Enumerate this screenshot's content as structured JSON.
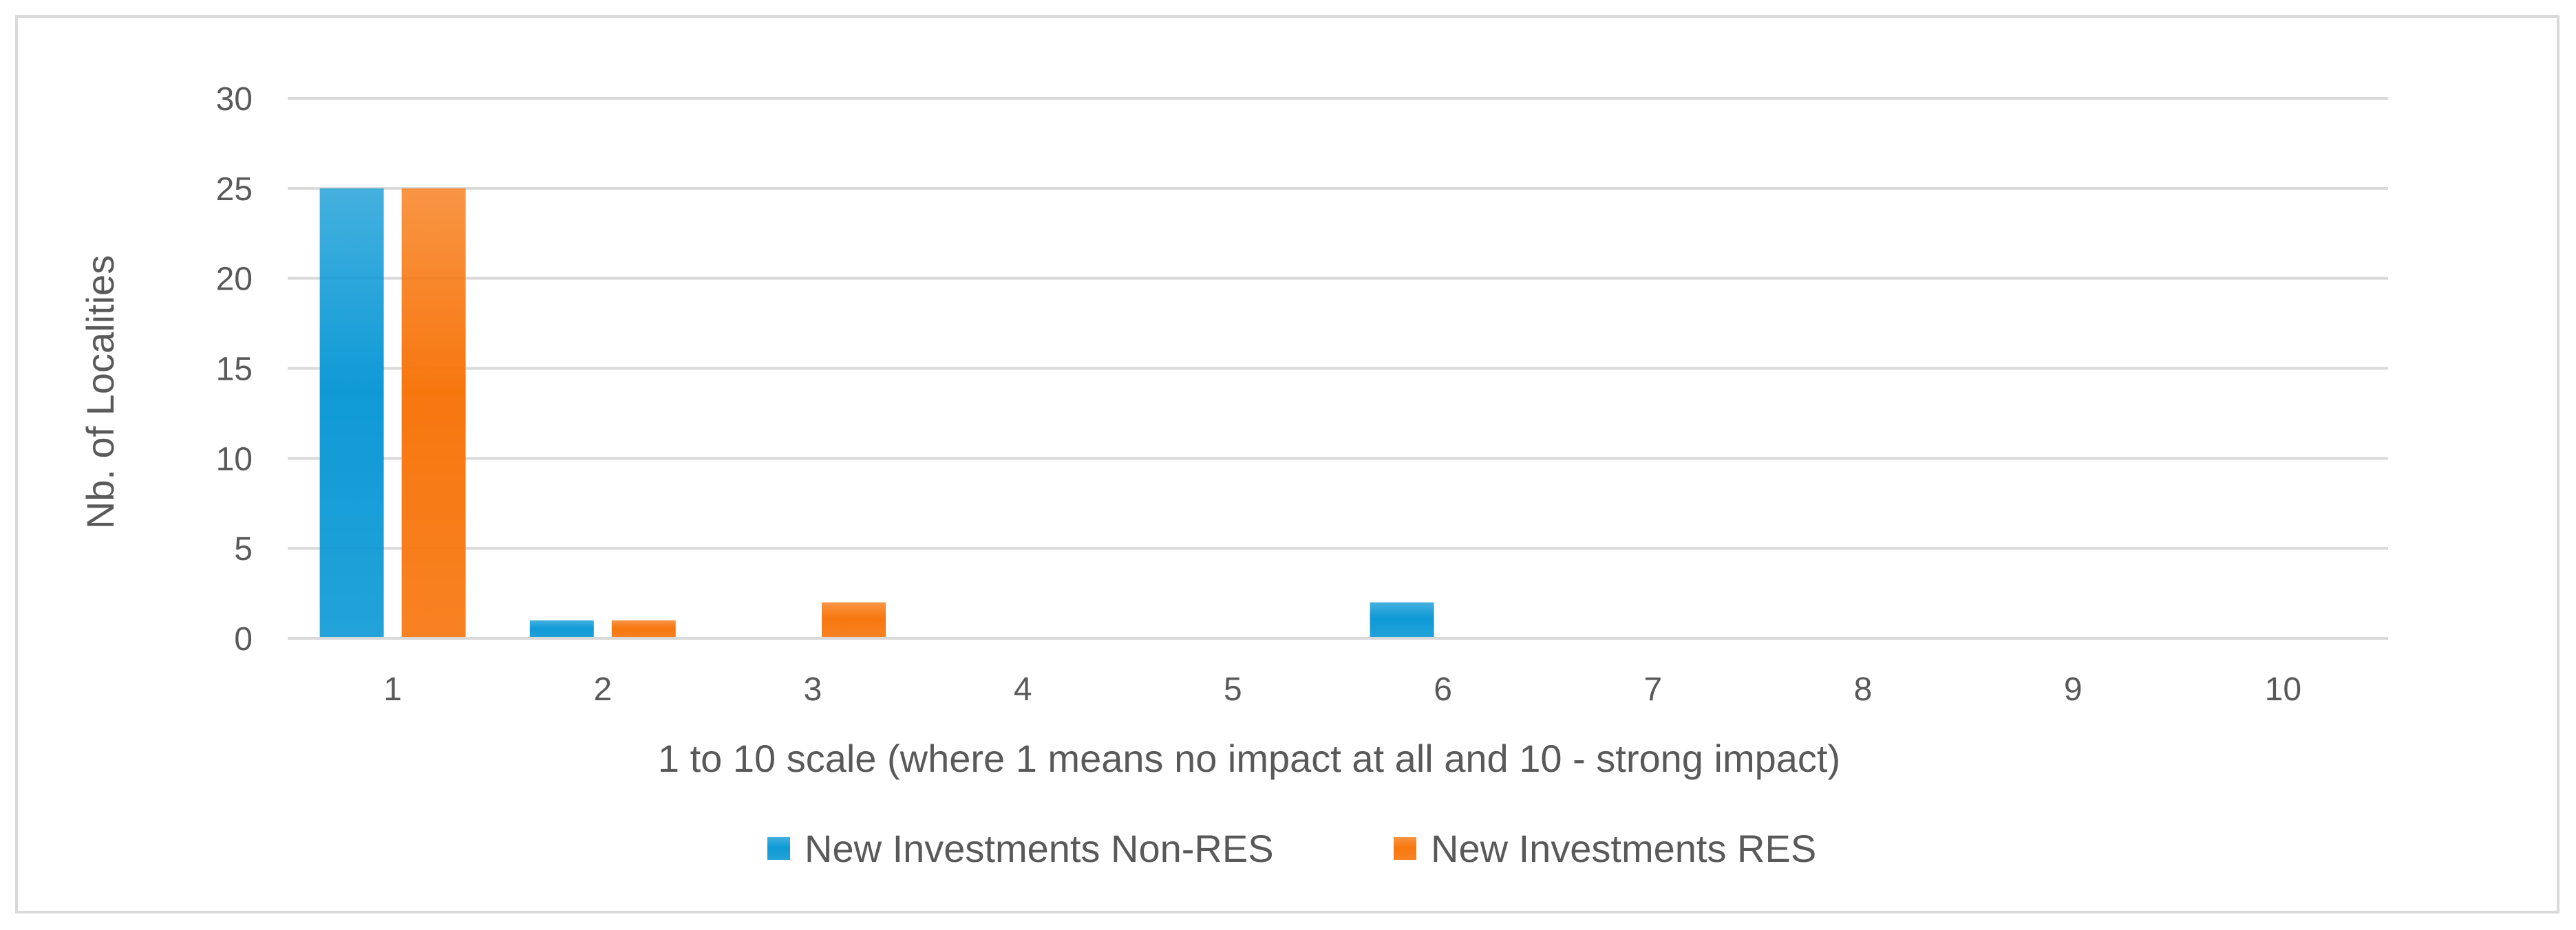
{
  "chart_data": {
    "type": "bar",
    "title": "",
    "xlabel": "1 to 10 scale (where 1 means no impact at all and 10 - strong impact)",
    "ylabel": "Nb. of Localities",
    "categories": [
      "1",
      "2",
      "3",
      "4",
      "5",
      "6",
      "7",
      "8",
      "9",
      "10"
    ],
    "series": [
      {
        "name": "New Investments Non-RES",
        "color": "#0f9ad6",
        "values": [
          25,
          1,
          0,
          0,
          0,
          2,
          0,
          0,
          0,
          0
        ]
      },
      {
        "name": "New Investments RES",
        "color": "#f7770f",
        "values": [
          25,
          1,
          2,
          0,
          0,
          0,
          0,
          0,
          0,
          0
        ]
      }
    ],
    "ylim": [
      0,
      30
    ],
    "yticks": [
      0,
      5,
      10,
      15,
      20,
      25,
      30
    ],
    "grid": true,
    "legend_position": "bottom"
  }
}
